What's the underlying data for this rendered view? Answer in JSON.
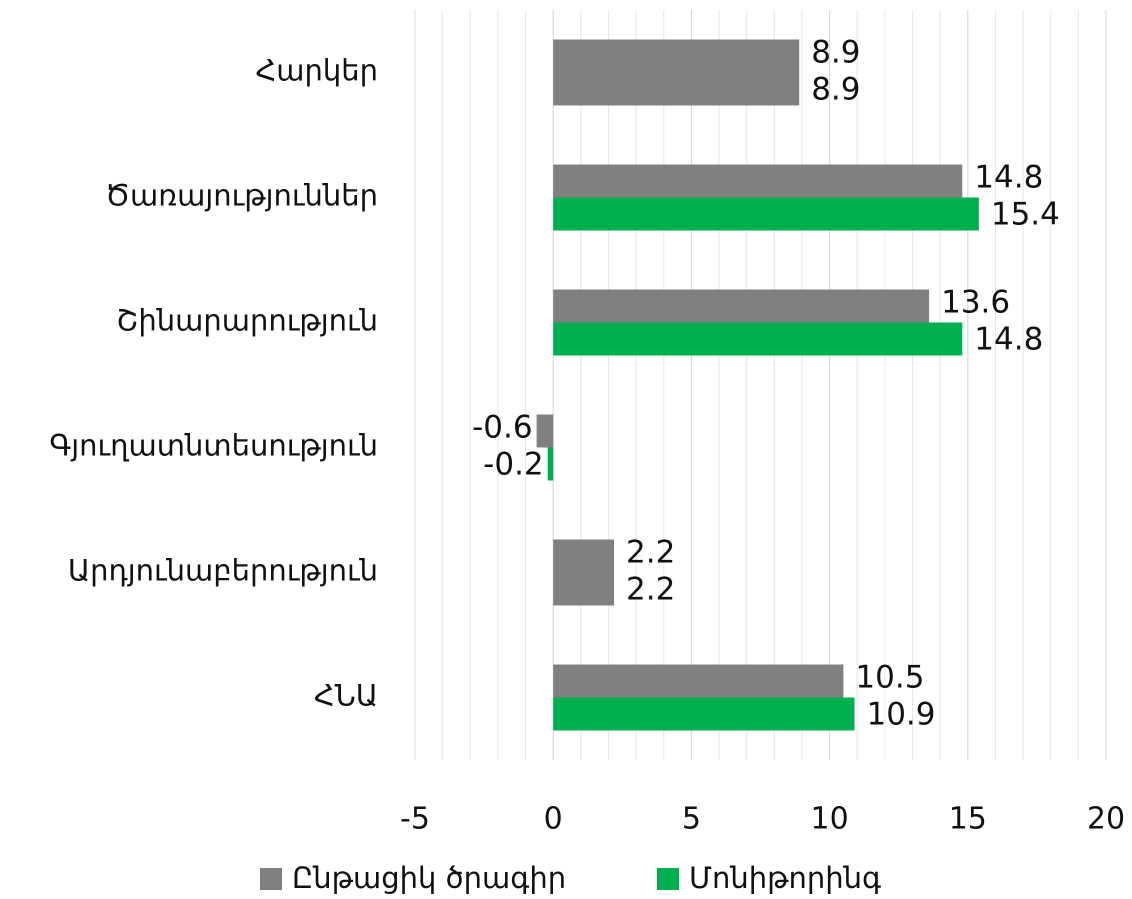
{
  "chart_data": {
    "type": "hbar",
    "categories": [
      "Հարկեր",
      "Ծառայություններ",
      "Շինարարություն",
      "Գյուղատնտեսություն",
      "Արդյունաբերություն",
      "ՀՆԱ"
    ],
    "series": [
      {
        "name": "Ընթացիկ ծրագիր",
        "color": "#808080",
        "values": [
          8.9,
          14.8,
          13.6,
          -0.6,
          2.2,
          10.5
        ]
      },
      {
        "name": "Մոնիթորինգ",
        "color": "#00b050",
        "colors": [
          "#808080",
          "#00b050",
          "#00b050",
          "#00b050",
          "#808080",
          "#00b050"
        ],
        "values": [
          8.9,
          15.4,
          14.8,
          -0.2,
          2.2,
          10.9
        ]
      }
    ],
    "xlim": [
      -5,
      20
    ],
    "xticks": [
      -5,
      0,
      5,
      10,
      15,
      20
    ],
    "grid": true,
    "minor_grid": true,
    "legend": "bottom"
  }
}
